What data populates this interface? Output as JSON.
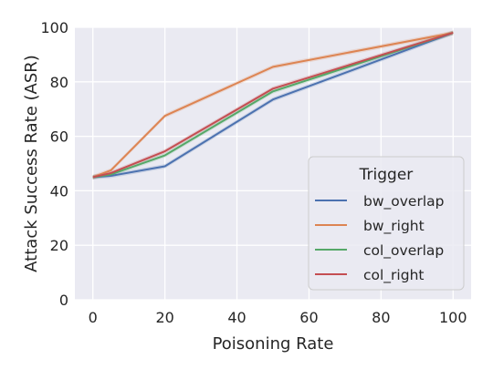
{
  "chart_data": {
    "type": "line",
    "xlabel": "Poisoning Rate",
    "ylabel": "Attack Success Rate (ASR)",
    "xlim": [
      -5,
      105
    ],
    "ylim": [
      0,
      100
    ],
    "xticks": [
      0,
      20,
      40,
      60,
      80,
      100
    ],
    "yticks": [
      0,
      20,
      40,
      60,
      80,
      100
    ],
    "grid": true,
    "background": "#eaeaf2",
    "legend": {
      "title": "Trigger",
      "placement": "bottom-right"
    },
    "series": [
      {
        "name": "bw_overlap",
        "color": "#4c72b0",
        "x": [
          0,
          5,
          20,
          50,
          100
        ],
        "y": [
          45,
          45.5,
          49,
          73.5,
          98
        ]
      },
      {
        "name": "bw_right",
        "color": "#dd8452",
        "x": [
          0,
          5,
          20,
          50,
          100
        ],
        "y": [
          45,
          47.5,
          67.5,
          85.5,
          98
        ]
      },
      {
        "name": "col_overlap",
        "color": "#55a868",
        "x": [
          0,
          5,
          20,
          50,
          100
        ],
        "y": [
          45,
          46,
          53,
          76.5,
          98
        ]
      },
      {
        "name": "col_right",
        "color": "#c44e52",
        "x": [
          0,
          5,
          20,
          50,
          100
        ],
        "y": [
          45,
          46.5,
          54.5,
          77.5,
          98
        ]
      }
    ]
  }
}
